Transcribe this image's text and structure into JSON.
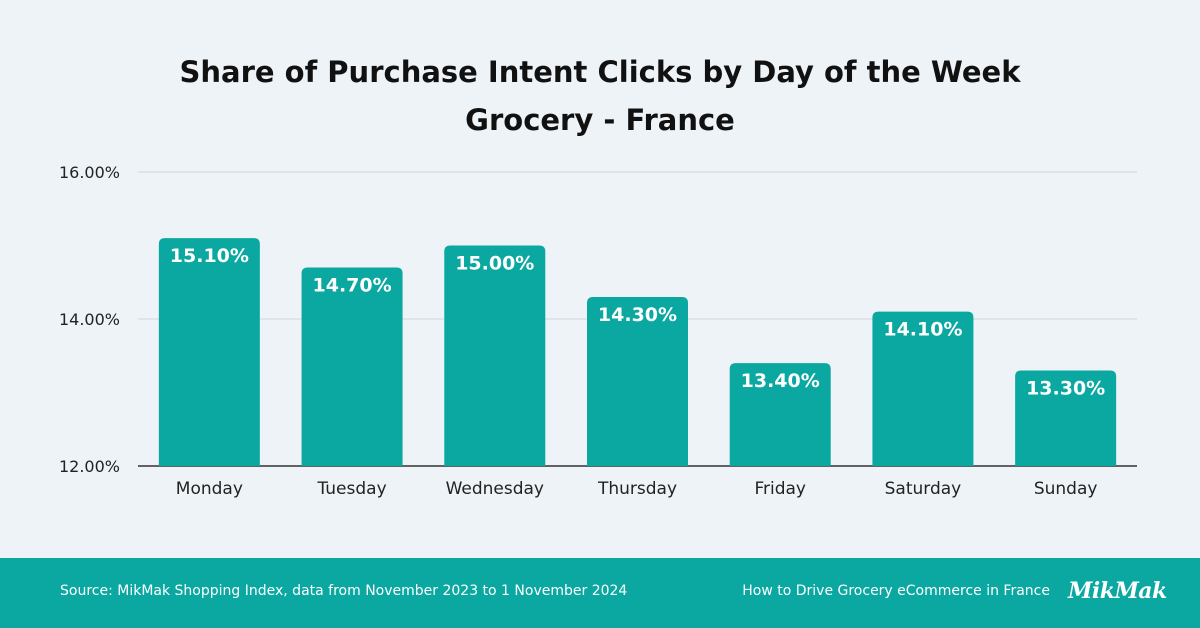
{
  "chart_data": {
    "type": "bar",
    "title": "Share of Purchase Intent Clicks by Day of the Week",
    "subtitle": "Grocery - France",
    "categories": [
      "Monday",
      "Tuesday",
      "Wednesday",
      "Thursday",
      "Friday",
      "Saturday",
      "Sunday"
    ],
    "values": [
      15.1,
      14.7,
      15.0,
      14.3,
      13.4,
      14.1,
      13.3
    ],
    "data_labels": [
      "15.10%",
      "14.70%",
      "15.00%",
      "14.30%",
      "13.40%",
      "14.10%",
      "13.30%"
    ],
    "y_ticks": [
      12,
      14,
      16
    ],
    "y_tick_labels": [
      "12.00%",
      "14.00%",
      "16.00%"
    ],
    "ylim": [
      12,
      16
    ],
    "grid": true,
    "legend": "none",
    "bar_color": "#0aa8a1"
  },
  "footer": {
    "source": "Source: MikMak Shopping Index, data from November 2023 to 1 November 2024",
    "link_text": "How to Drive Grocery eCommerce in France",
    "logo_text": "MikMak",
    "background": "#0aa8a1"
  }
}
